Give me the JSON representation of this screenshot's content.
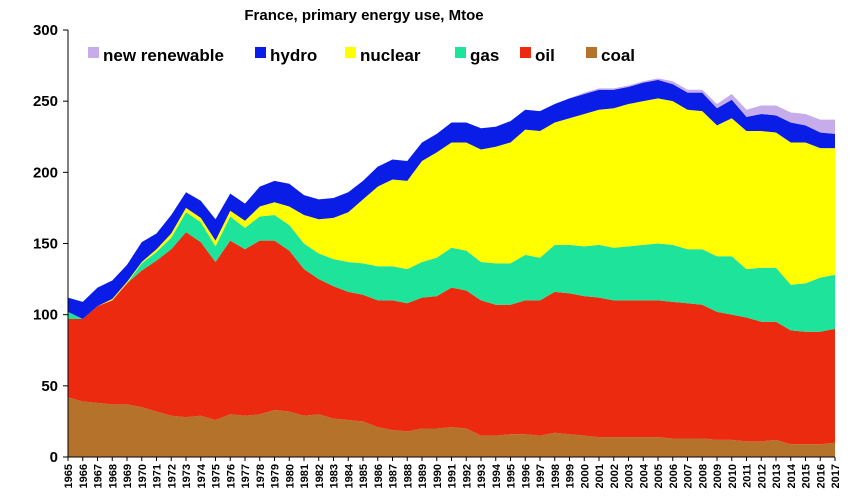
{
  "chart_data": {
    "type": "area",
    "stacked": true,
    "title": "France, primary energy use, Mtoe",
    "xlabel": "",
    "ylabel": "",
    "ylim": [
      0,
      300
    ],
    "yticks": [
      0,
      50,
      100,
      150,
      200,
      250,
      300
    ],
    "grid": false,
    "legend_position": "top-left",
    "categories": [
      "1965",
      "1966",
      "1967",
      "1968",
      "1969",
      "1970",
      "1971",
      "1972",
      "1973",
      "1974",
      "1975",
      "1976",
      "1977",
      "1978",
      "1979",
      "1980",
      "1981",
      "1982",
      "1983",
      "1984",
      "1985",
      "1986",
      "1987",
      "1988",
      "1989",
      "1990",
      "1991",
      "1992",
      "1993",
      "1994",
      "1995",
      "1996",
      "1997",
      "1998",
      "1999",
      "2000",
      "2001",
      "2002",
      "2003",
      "2004",
      "2005",
      "2006",
      "2007",
      "2008",
      "2009",
      "2010",
      "2011",
      "2012",
      "2013",
      "2014",
      "2015",
      "2016",
      "2017"
    ],
    "series": [
      {
        "name": "coal",
        "color": "#b5722a",
        "values": [
          42,
          39,
          38,
          37,
          37,
          35,
          32,
          29,
          28,
          29,
          26,
          30,
          29,
          30,
          33,
          32,
          29,
          30,
          27,
          26,
          25,
          21,
          19,
          18,
          20,
          20,
          21,
          20,
          15,
          15,
          16,
          16,
          15,
          17,
          16,
          15,
          14,
          14,
          14,
          14,
          14,
          13,
          13,
          13,
          12,
          12,
          11,
          11,
          12,
          9,
          9,
          9,
          10
        ]
      },
      {
        "name": "oil",
        "color": "#ec2a10",
        "values": [
          55,
          58,
          68,
          73,
          85,
          96,
          106,
          117,
          130,
          122,
          111,
          122,
          117,
          122,
          119,
          113,
          103,
          95,
          93,
          90,
          89,
          89,
          91,
          90,
          92,
          93,
          98,
          97,
          95,
          92,
          91,
          94,
          95,
          99,
          99,
          98,
          98,
          96,
          96,
          96,
          96,
          96,
          95,
          94,
          90,
          88,
          87,
          84,
          83,
          80,
          79,
          79,
          80
        ]
      },
      {
        "name": "gas",
        "color": "#1ee39a",
        "values": [
          5,
          0,
          0,
          0,
          0,
          5,
          6,
          8,
          14,
          14,
          11,
          17,
          15,
          17,
          18,
          18,
          18,
          18,
          19,
          21,
          22,
          24,
          24,
          24,
          25,
          27,
          28,
          28,
          27,
          29,
          29,
          32,
          30,
          33,
          34,
          35,
          37,
          37,
          38,
          39,
          40,
          40,
          38,
          39,
          39,
          41,
          34,
          38,
          38,
          32,
          34,
          38,
          38
        ]
      },
      {
        "name": "nuclear",
        "color": "#ffff00",
        "values": [
          0,
          0,
          0,
          1,
          1,
          1,
          2,
          3,
          3,
          3,
          4,
          4,
          5,
          7,
          9,
          13,
          20,
          24,
          29,
          35,
          45,
          56,
          61,
          62,
          71,
          74,
          74,
          76,
          79,
          82,
          85,
          88,
          89,
          86,
          89,
          93,
          95,
          98,
          100,
          101,
          102,
          101,
          98,
          97,
          92,
          97,
          97,
          96,
          95,
          100,
          99,
          91,
          89
        ]
      },
      {
        "name": "hydro",
        "color": "#0a1de6",
        "values": [
          10,
          12,
          13,
          13,
          12,
          14,
          11,
          13,
          11,
          12,
          15,
          12,
          12,
          14,
          15,
          16,
          14,
          14,
          14,
          14,
          13,
          14,
          14,
          14,
          13,
          13,
          14,
          14,
          15,
          14,
          15,
          14,
          14,
          13,
          14,
          14,
          14,
          13,
          12,
          13,
          13,
          12,
          12,
          13,
          12,
          13,
          10,
          12,
          12,
          14,
          12,
          11,
          10
        ]
      },
      {
        "name": "new renewable",
        "color": "#c6acea",
        "values": [
          0,
          0,
          0,
          0,
          0,
          0,
          0,
          0,
          0,
          0,
          0,
          0,
          0,
          0,
          0,
          0,
          0,
          0,
          0,
          0,
          0,
          0,
          0,
          0,
          0,
          0,
          0,
          0,
          0,
          0,
          0,
          0,
          0,
          0,
          0,
          1,
          1,
          1,
          1,
          1,
          1,
          2,
          2,
          2,
          3,
          4,
          5,
          6,
          7,
          7,
          8,
          9,
          10
        ]
      }
    ]
  }
}
